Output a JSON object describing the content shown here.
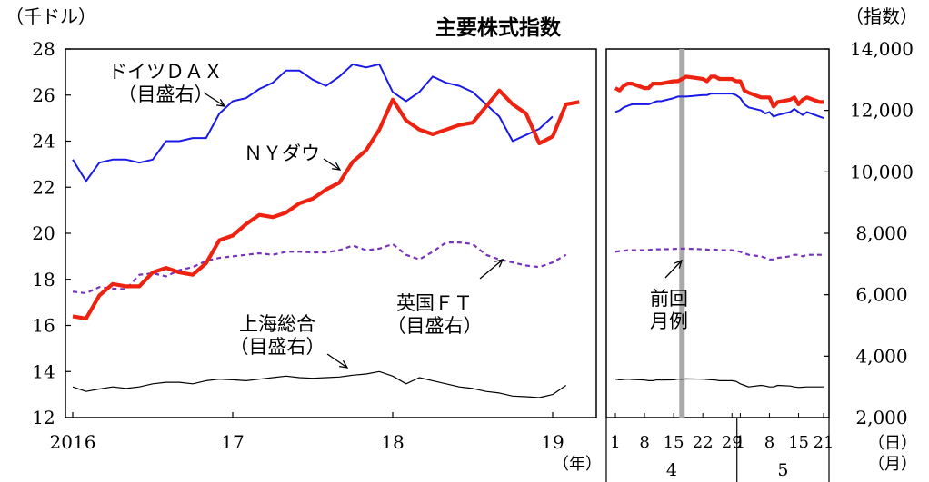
{
  "chart_data": {
    "type": "line",
    "title": "主要株式指数",
    "left_unit": "（千ドル）",
    "right_unit": "（指数）",
    "left_axis": {
      "ylim": [
        12,
        28
      ],
      "ticks": [
        "12",
        "14",
        "16",
        "18",
        "20",
        "22",
        "24",
        "26",
        "28"
      ]
    },
    "right_axis": {
      "ylim": [
        2000,
        14000
      ],
      "ticks": [
        "2,000",
        "4,000",
        "6,000",
        "8,000",
        "10,000",
        "12,000",
        "14,000"
      ]
    },
    "x_year_labels": [
      "2016",
      "17",
      "18",
      "19"
    ],
    "x_year_unit": "（年）",
    "x_day_labels": [
      "1",
      "8",
      "15",
      "22",
      "29",
      "1",
      "8",
      "15",
      "21"
    ],
    "x_day_unit": "（日）",
    "x_month_labels": [
      "4",
      "5"
    ],
    "x_month_unit": "（月）",
    "annotations": {
      "dax": [
        "ドイツＤＡＸ",
        "（目盛右）"
      ],
      "ny": [
        "ＮＹダウ"
      ],
      "ftse": [
        "英国ＦＴ",
        "（目盛右）"
      ],
      "shanghai": [
        "上海総合",
        "（目盛右）"
      ],
      "prev": [
        "前回",
        "月例"
      ]
    },
    "colors": {
      "ny": "#ee2211",
      "dax": "#1a1ae6",
      "ftse": "#7733bb",
      "shanghai": "#000000",
      "marker": "#aaaaaa"
    },
    "monthly": {
      "ny": [
        16.4,
        16.3,
        17.3,
        17.8,
        17.7,
        17.7,
        18.3,
        18.5,
        18.3,
        18.2,
        18.7,
        19.7,
        19.9,
        20.4,
        20.8,
        20.7,
        20.9,
        21.3,
        21.5,
        21.9,
        22.2,
        23.1,
        23.6,
        24.5,
        25.8,
        24.9,
        24.5,
        24.3,
        24.5,
        24.7,
        24.8,
        25.5,
        26.2,
        25.6,
        25.2,
        23.9,
        24.2,
        25.6,
        25.7
      ],
      "dax": [
        10400,
        9700,
        10300,
        10400,
        10400,
        10300,
        10400,
        11000,
        11000,
        11100,
        11100,
        11900,
        12300,
        12400,
        12700,
        12900,
        13300,
        13300,
        13000,
        12800,
        13100,
        13500,
        13400,
        13500,
        12600,
        12300,
        12600,
        13100,
        12900,
        12800,
        12600,
        12200,
        11800,
        11000,
        11200,
        11400,
        11800
      ],
      "ftse": [
        6100,
        6050,
        6250,
        6200,
        6180,
        6650,
        6700,
        6600,
        6800,
        6900,
        7100,
        7200,
        7250,
        7300,
        7350,
        7300,
        7400,
        7400,
        7380,
        7380,
        7450,
        7600,
        7450,
        7500,
        7650,
        7300,
        7150,
        7400,
        7700,
        7700,
        7650,
        7300,
        7150,
        7050,
        6950,
        6900,
        7050,
        7300
      ],
      "shanghai": [
        3000,
        2850,
        2930,
        3000,
        2950,
        3000,
        3100,
        3150,
        3150,
        3100,
        3200,
        3250,
        3230,
        3200,
        3250,
        3300,
        3350,
        3300,
        3280,
        3300,
        3320,
        3380,
        3420,
        3500,
        3350,
        3100,
        3300,
        3200,
        3100,
        3000,
        2950,
        2850,
        2800,
        2700,
        2680,
        2650,
        2750,
        3050
      ]
    },
    "daily_x": [
      1,
      2,
      3,
      4,
      5,
      8,
      9,
      10,
      11,
      12,
      15,
      16,
      17,
      18,
      22,
      23,
      24,
      25,
      26,
      29,
      30,
      31,
      32,
      33,
      36,
      37,
      38,
      39,
      40,
      43,
      44,
      45,
      46,
      47,
      50,
      51
    ],
    "daily": {
      "ny": [
        26.3,
        26.2,
        26.4,
        26.5,
        26.5,
        26.3,
        26.3,
        26.5,
        26.5,
        26.5,
        26.6,
        26.6,
        26.7,
        26.8,
        26.7,
        26.6,
        26.8,
        26.8,
        26.7,
        26.7,
        26.6,
        26.6,
        26.2,
        26.1,
        25.9,
        25.9,
        25.9,
        25.5,
        25.7,
        25.8,
        25.9,
        25.6,
        25.8,
        25.9,
        25.7,
        25.7
      ],
      "dax": [
        11950,
        12000,
        12100,
        12150,
        12200,
        12200,
        12200,
        12250,
        12300,
        12300,
        12400,
        12450,
        12450,
        12450,
        12500,
        12500,
        12550,
        12550,
        12550,
        12550,
        12500,
        12400,
        12200,
        12100,
        12000,
        11900,
        11950,
        11800,
        11850,
        11950,
        12050,
        11950,
        11850,
        11950,
        11800,
        11750
      ],
      "ftse": [
        7400,
        7420,
        7430,
        7450,
        7450,
        7450,
        7460,
        7470,
        7480,
        7480,
        7490,
        7500,
        7500,
        7500,
        7480,
        7470,
        7460,
        7470,
        7450,
        7450,
        7430,
        7400,
        7350,
        7300,
        7250,
        7200,
        7150,
        7150,
        7200,
        7250,
        7300,
        7300,
        7250,
        7300,
        7300,
        7300
      ],
      "shanghai": [
        3250,
        3230,
        3240,
        3250,
        3240,
        3220,
        3200,
        3200,
        3230,
        3220,
        3230,
        3250,
        3250,
        3260,
        3250,
        3240,
        3230,
        3220,
        3200,
        3200,
        3180,
        3100,
        3050,
        3000,
        3050,
        3030,
        3000,
        3000,
        3050,
        3030,
        3000,
        2980,
        2990,
        3000,
        3000,
        3000
      ]
    },
    "prev_report_day": 17,
    "grid": false,
    "legend": "none"
  }
}
